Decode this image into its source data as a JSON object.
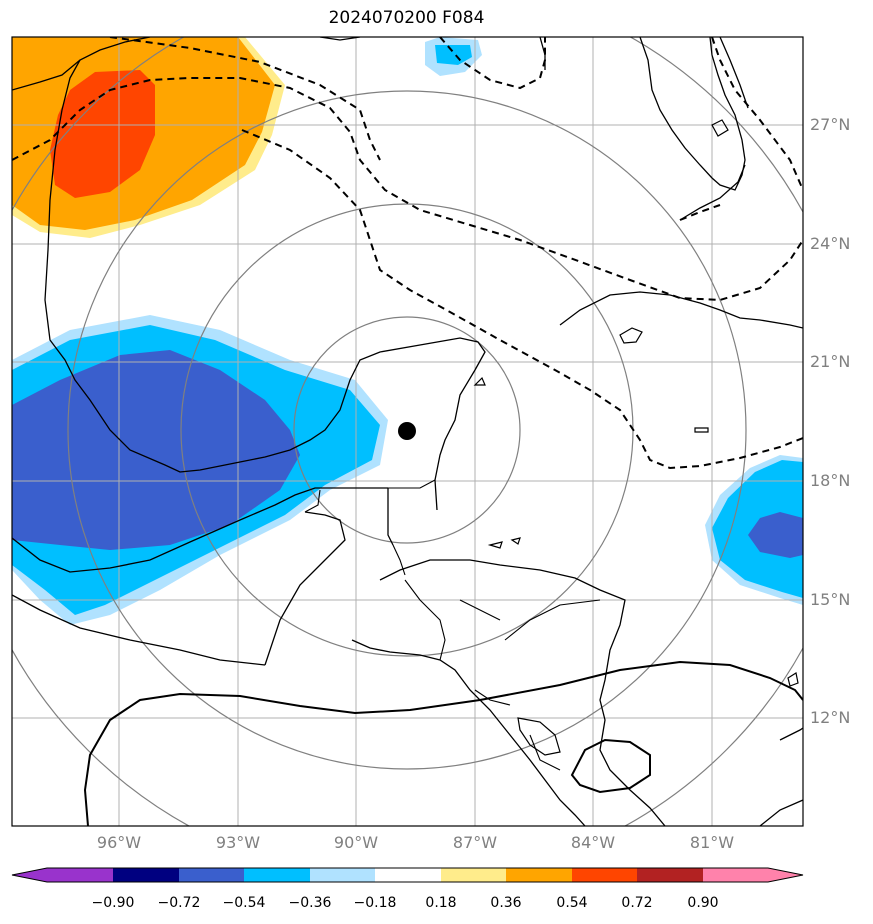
{
  "title": "2024070200 F084",
  "map": {
    "center_marker": "storm-center",
    "lat_labels": [
      "27°N",
      "24°N",
      "21°N",
      "18°N",
      "15°N",
      "12°N"
    ],
    "lon_labels": [
      "96°W",
      "93°W",
      "90°W",
      "87°W",
      "84°W",
      "81°W"
    ]
  },
  "colorbar": {
    "colors": [
      "#9933cc",
      "#000080",
      "#3a5fcd",
      "#00bfff",
      "#b0e2ff",
      "#ffffff",
      "#ffec8b",
      "#ffa500",
      "#ff4500",
      "#b22222",
      "#ff82ab"
    ],
    "labels": [
      "−0.90",
      "−0.72",
      "−0.54",
      "−0.36",
      "−0.18",
      "0.18",
      "0.36",
      "0.54",
      "0.72",
      "0.90"
    ]
  }
}
